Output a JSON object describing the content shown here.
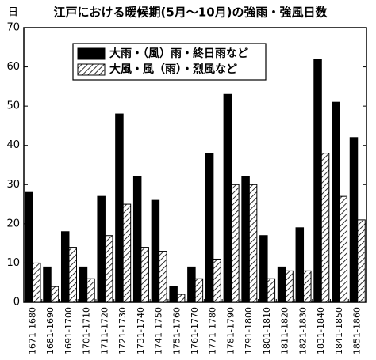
{
  "chart_data": {
    "type": "bar",
    "title": "江戸における暖候期(5月～10月)の強雨・強風日数",
    "y_axis_label": "日",
    "categories": [
      "1671-1680",
      "1681-1690",
      "1691-1700",
      "1701-1710",
      "1711-1720",
      "1721-1730",
      "1731-1740",
      "1741-1750",
      "1751-1760",
      "1761-1770",
      "1771-1780",
      "1781-1790",
      "1791-1800",
      "1801-1810",
      "1811-1820",
      "1821-1830",
      "1831-1840",
      "1841-1850",
      "1851-1860"
    ],
    "series": [
      {
        "name": "大雨・（風）雨・終日雨など",
        "color": "#000000",
        "pattern": "solid",
        "values": [
          28,
          9,
          18,
          9,
          27,
          48,
          32,
          26,
          4,
          9,
          38,
          53,
          32,
          17,
          9,
          19,
          62,
          51,
          42
        ]
      },
      {
        "name": "大風・風（雨）・烈風など",
        "color": "#000000",
        "pattern": "hatch",
        "values": [
          10,
          4,
          14,
          6,
          17,
          25,
          14,
          13,
          2,
          6,
          11,
          30,
          30,
          6,
          8,
          8,
          38,
          27,
          21
        ]
      }
    ],
    "ylim": [
      0,
      70
    ],
    "yticks": [
      0,
      10,
      20,
      30,
      40,
      50,
      60,
      70
    ],
    "grid": false,
    "legend": "top-left"
  }
}
